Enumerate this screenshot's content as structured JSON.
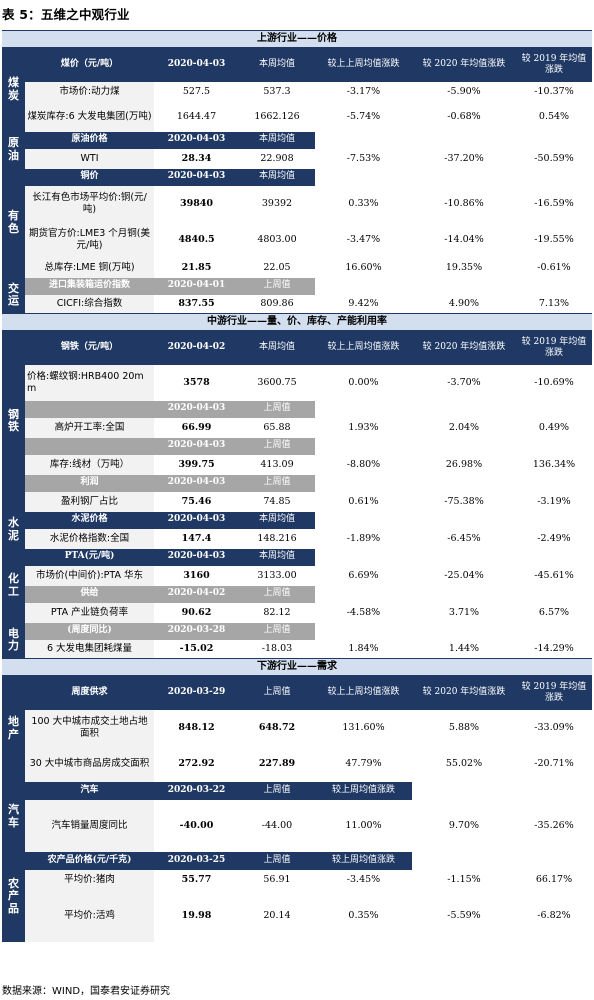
{
  "title": "表 5：五维之中观行业",
  "upstream": {
    "band": "上游行业——价格",
    "coal": {
      "section": "煤炭",
      "header": [
        "煤价（元/吨）",
        "2020-04-03",
        "本周均值",
        "较上上周均值涨跌",
        "较 2020 年均值涨跌",
        "较 2019 年均值涨跌"
      ],
      "rows": [
        [
          "市场价:动力煤",
          "527.5",
          "537.3",
          "-3.17%",
          "-5.90%",
          "-10.37%"
        ],
        [
          "煤炭库存:6 大发电集团(万吨)",
          "1644.47",
          "1662.126",
          "-5.74%",
          "-0.68%",
          "0.54%"
        ]
      ]
    },
    "oil": {
      "section": "原油",
      "header": [
        "原油价格",
        "2020-04-03",
        "本周均值"
      ],
      "rows": [
        [
          "WTI",
          "28.34",
          "22.908",
          "-7.53%",
          "-37.20%",
          "-50.59%"
        ]
      ]
    },
    "metal": {
      "section": "有色",
      "header": [
        "铜价",
        "2020-04-03",
        "本周均值"
      ],
      "rows": [
        [
          "长江有色市场平均价:铜(元/吨)",
          "39840",
          "39392",
          "0.33%",
          "-10.86%",
          "-16.59%"
        ],
        [
          "期货官方价:LME3 个月铜(美元/吨)",
          "4840.5",
          "4803.00",
          "-3.47%",
          "-14.04%",
          "-19.55%"
        ],
        [
          "总库存:LME 铜(万吨)",
          "21.85",
          "22.05",
          "16.60%",
          "19.35%",
          "-0.61%"
        ]
      ]
    },
    "transport": {
      "section": "交运",
      "header": [
        "进口集装箱运价指数",
        "2020-04-01",
        "上周值"
      ],
      "rows": [
        [
          "CICFI:综合指数",
          "837.55",
          "809.86",
          "9.42%",
          "4.90%",
          "7.13%"
        ]
      ]
    }
  },
  "midstream": {
    "band": "中游行业——量、价、库存、产能利用率",
    "steel": {
      "section": "钢铁",
      "header": [
        "钢铁（元/吨）",
        "2020-04-02",
        "本周均值",
        "较上上周均值涨跌",
        "较 2020 年均值涨跌",
        "较 2019 年均值涨跌"
      ],
      "row1": [
        "价格:螺纹钢:HRB400 20mm",
        "3578",
        "3600.75",
        "0.00%",
        "-3.70%",
        "-10.69%"
      ],
      "sub2": [
        "",
        "2020-04-03",
        "上周值"
      ],
      "row2": [
        "高炉开工率:全国",
        "66.99",
        "65.88",
        "1.93%",
        "2.04%",
        "0.49%"
      ],
      "sub3": [
        "",
        "2020-04-03",
        "上周值"
      ],
      "row3": [
        "库存:线材（万吨）",
        "399.75",
        "413.09",
        "-8.80%",
        "26.98%",
        "136.34%"
      ],
      "sub4": [
        "利润",
        "2020-04-03",
        "上周值"
      ],
      "row4": [
        "盈利钢厂占比",
        "75.46",
        "74.85",
        "0.61%",
        "-75.38%",
        "-3.19%"
      ]
    },
    "cement": {
      "section": "水泥",
      "header": [
        "水泥价格",
        "2020-04-03",
        "本周均值"
      ],
      "row": [
        "水泥价格指数:全国",
        "147.4",
        "148.216",
        "-1.89%",
        "-6.45%",
        "-2.49%"
      ]
    },
    "chem": {
      "section": "化工",
      "header": [
        "PTA(元/吨)",
        "2020-04-03",
        "本周均值"
      ],
      "row1": [
        "市场价(中间价):PTA 华东",
        "3160",
        "3133.00",
        "6.69%",
        "-25.04%",
        "-45.61%"
      ],
      "sub2": [
        "供给",
        "2020-04-02",
        "上周值"
      ],
      "row2": [
        "PTA 产业链负荷率",
        "90.62",
        "82.12",
        "-4.58%",
        "3.71%",
        "6.57%"
      ]
    },
    "power": {
      "section": "电力",
      "header": [
        "(周度同比)",
        "2020-03-28",
        "上周值"
      ],
      "row": [
        "6 大发电集团耗煤量",
        "-15.02",
        "-18.03",
        "1.84%",
        "1.44%",
        "-14.29%"
      ]
    }
  },
  "downstream": {
    "band": "下游行业——需求",
    "property": {
      "section": "地产",
      "header": [
        "周度供求",
        "2020-03-29",
        "上周值",
        "较上上周均值涨跌",
        "较 2020 年均值涨跌",
        "较 2019 年均值涨跌"
      ],
      "rows": [
        [
          "100 大中城市成交土地占地面积",
          "848.12",
          "648.72",
          "131.60%",
          "5.88%",
          "-33.09%"
        ],
        [
          "30 大中城市商品房成交面积",
          "272.92",
          "227.89",
          "47.79%",
          "55.02%",
          "-20.71%"
        ]
      ]
    },
    "auto": {
      "section": "汽车",
      "header": [
        "汽车",
        "2020-03-22",
        "上周值",
        "较上周均值涨跌"
      ],
      "row": [
        "汽车销量周度同比",
        "-40.00",
        "-44.00",
        "11.00%",
        "9.70%",
        "-35.26%"
      ]
    },
    "agri": {
      "section": "农产品",
      "header": [
        "农产品价格(元/千克)",
        "2020-03-25",
        "上周值",
        "较上周均值涨跌"
      ],
      "rows": [
        [
          "平均价:猪肉",
          "55.77",
          "56.91",
          "-3.45%",
          "-1.15%",
          "66.17%"
        ],
        [
          "平均价:活鸡",
          "19.98",
          "20.14",
          "0.35%",
          "-5.59%",
          "-6.82%"
        ]
      ]
    }
  },
  "footer": "数据来源：WIND，国泰君安证券研究",
  "colors": {
    "header_navy": "#1f3864",
    "band_blue": "#d3dfee",
    "sub_gray": "#a6a6a6",
    "label_bg": "#f2f2f2"
  }
}
